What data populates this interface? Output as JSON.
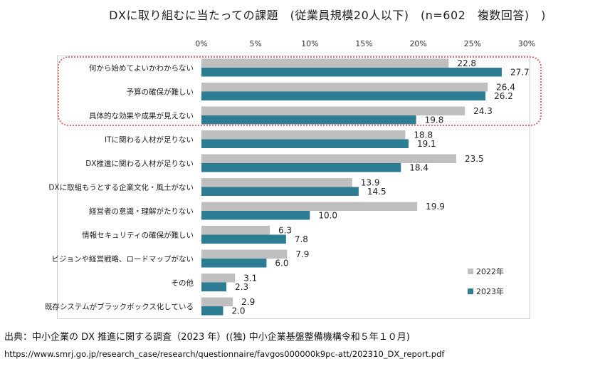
{
  "chart_data": {
    "type": "bar",
    "orientation": "horizontal",
    "title": "DXに取り組むに当たっての課題　(従業員規模20人以下)　(n=602　複数回答)　)",
    "categories": [
      "何から始めてよいかわからない",
      "予算の確保が難しい",
      "具体的な効果や成果が見えない",
      "ITに関わる人材が足りない",
      "DX推進に関わる人材が足りない",
      "DXに取組もうとする企業文化・風土がない",
      "経営者の意識・理解がたりない",
      "情報セキュリティの確保が難しい",
      "ビジョンや経営戦略、ロードマップがない",
      "その他",
      "既存システムがブラックボックス化している"
    ],
    "series": [
      {
        "name": "2022年",
        "color": "#bfbfbf",
        "values": [
          22.8,
          26.4,
          24.3,
          18.8,
          23.5,
          13.9,
          19.9,
          6.3,
          7.9,
          3.1,
          2.9
        ]
      },
      {
        "name": "2023年",
        "color": "#2c7d93",
        "values": [
          27.7,
          26.2,
          19.8,
          19.1,
          18.4,
          14.5,
          10.0,
          7.8,
          6.0,
          2.3,
          2.0
        ]
      }
    ],
    "xlim": [
      0,
      30
    ],
    "xticks": [
      "0%",
      "5%",
      "10%",
      "15%",
      "20%",
      "25%",
      "30%"
    ],
    "grid": false,
    "legend": "bottom-right",
    "highlight_color": "#e04040"
  },
  "source": "出典：中小企業の DX 推進に関する調査（2023 年）((独) 中小企業基盤整備機構令和５年１０月)",
  "url": "https://www.smrj.go.jp/research_case/research/questionnaire/favgos000000k9pc-att/202310_DX_report.pdf"
}
